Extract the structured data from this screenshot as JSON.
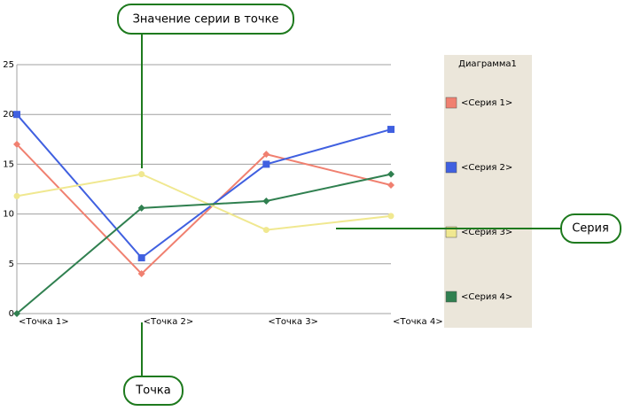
{
  "chart_data": {
    "type": "line",
    "categories": [
      "<Точка 1>",
      "<Точка 2>",
      "<Точка 3>",
      "<Точка 4>"
    ],
    "series": [
      {
        "name": "<Серия 1>",
        "color": "#f08070",
        "marker": "diamond",
        "values": [
          17,
          4,
          16,
          12.9
        ]
      },
      {
        "name": "<Серия 2>",
        "color": "#4060e0",
        "marker": "square",
        "values": [
          20,
          5.6,
          15,
          18.5
        ]
      },
      {
        "name": "<Серия 3>",
        "color": "#f0e890",
        "marker": "circle",
        "values": [
          11.8,
          14,
          8.4,
          9.8
        ]
      },
      {
        "name": "<Серия 4>",
        "color": "#308050",
        "marker": "diamond",
        "values": [
          0,
          10.6,
          11.3,
          14
        ]
      }
    ],
    "ylim": [
      0,
      25
    ],
    "yticks": [
      0,
      5,
      10,
      15,
      20,
      25
    ],
    "grid": true,
    "legend_title": "Диаграмма1",
    "legend": "right",
    "annotations": [
      "Значение серии в точке",
      "Серия",
      "Точка"
    ]
  }
}
